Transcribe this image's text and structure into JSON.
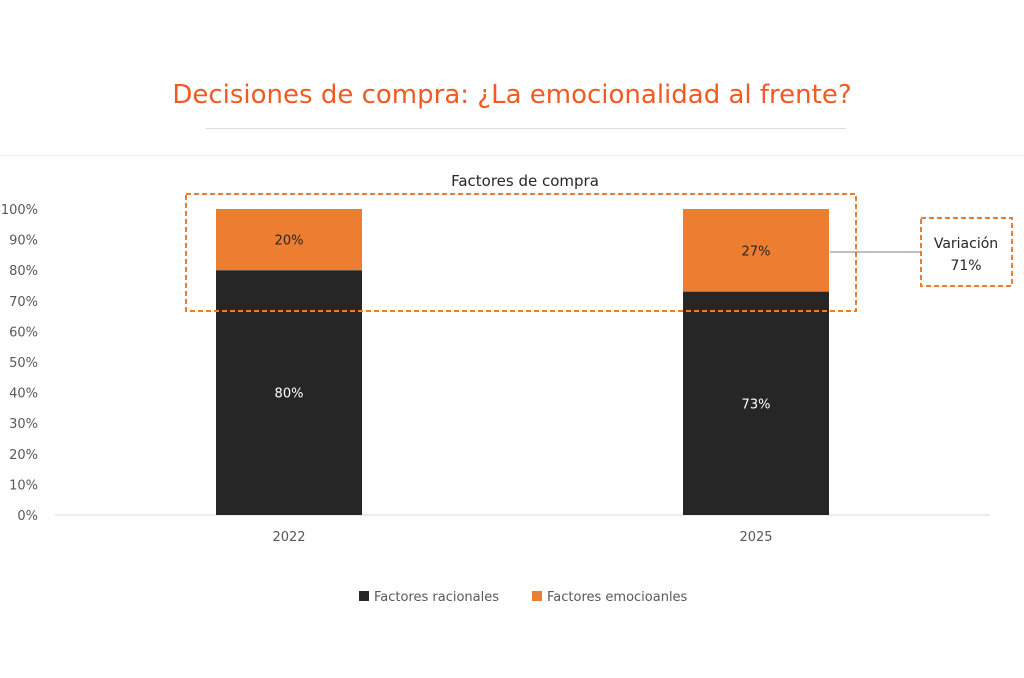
{
  "page": {
    "title": "Decisiones de compra: ¿La emocionalidad al frente?"
  },
  "colors": {
    "accent": "#f15a22",
    "racionales": "#262626",
    "emocionales": "#ed7d31",
    "axis_text": "#595959"
  },
  "chart_data": {
    "type": "bar",
    "stacked": true,
    "title": "Factores de compra",
    "categories": [
      "2022",
      "2025"
    ],
    "series": [
      {
        "name": "Factores racionales",
        "values": [
          80,
          73
        ],
        "labels": [
          "80%",
          "73%"
        ]
      },
      {
        "name": "Factores emocioanles",
        "values": [
          20,
          27
        ],
        "labels": [
          "20%",
          "27%"
        ]
      }
    ],
    "ylim": [
      0,
      100
    ],
    "yticks": [
      0,
      10,
      20,
      30,
      40,
      50,
      60,
      70,
      80,
      90,
      100
    ],
    "ytick_labels": [
      "0%",
      "10%",
      "20%",
      "30%",
      "40%",
      "50%",
      "60%",
      "70%",
      "80%",
      "90%",
      "100%"
    ],
    "grid": false,
    "legend_position": "bottom",
    "annotation": {
      "line1": "Variación",
      "line2": "71%"
    }
  }
}
